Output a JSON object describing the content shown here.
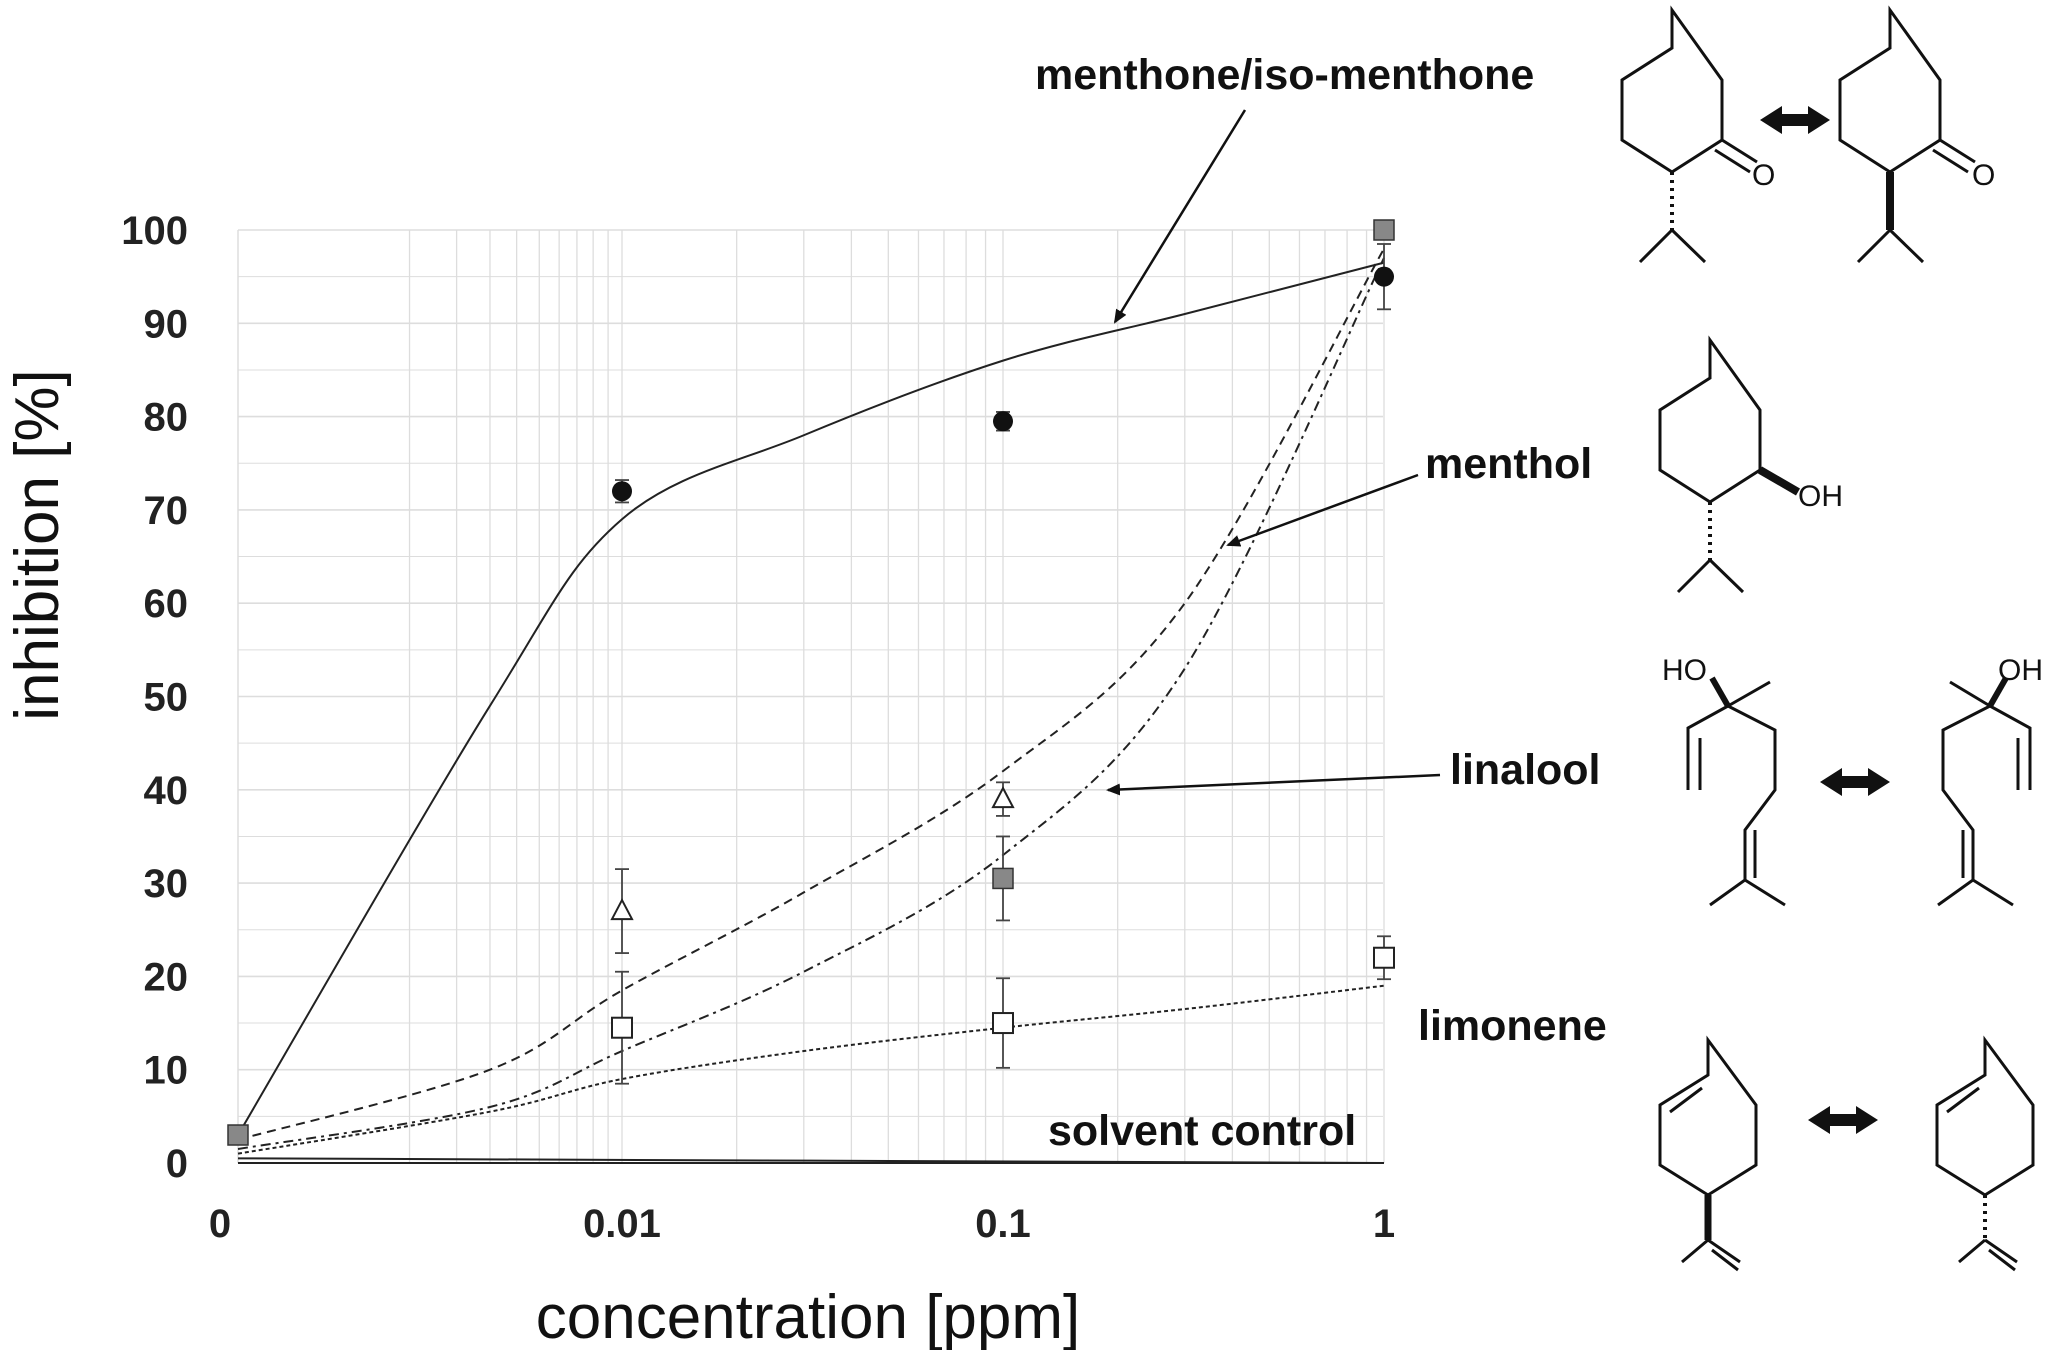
{
  "chart_data": {
    "type": "scatter",
    "xlabel": "concentration [ppm]",
    "ylabel": "inhibition [%]",
    "x_scale": "log",
    "x_ticks": [
      "0",
      "0.01",
      "0.1",
      "1"
    ],
    "y_ticks": [
      "0",
      "10",
      "20",
      "30",
      "40",
      "50",
      "60",
      "70",
      "80",
      "90",
      "100"
    ],
    "ylim": [
      0,
      100
    ],
    "grid": true,
    "series": [
      {
        "marker": "filled-circle",
        "x": [
          0.01,
          0.1,
          1
        ],
        "y": [
          72,
          79.5,
          95
        ],
        "err": [
          1.2,
          1.0,
          3.5
        ]
      },
      {
        "marker": "grey-square",
        "x": [
          0,
          0.1,
          1
        ],
        "y": [
          3,
          30.5,
          100
        ],
        "err": [
          0,
          4.5,
          0
        ]
      },
      {
        "marker": "open-triangle",
        "x": [
          0.01,
          0.1
        ],
        "y": [
          27,
          39
        ],
        "err": [
          4.5,
          1.8
        ]
      },
      {
        "marker": "open-square",
        "x": [
          0.01,
          0.1,
          1
        ],
        "y": [
          14.5,
          15,
          22
        ],
        "err": [
          6.0,
          4.8,
          2.3
        ]
      }
    ],
    "fit_curves": [
      {
        "label": "menthone/iso-menthone",
        "style": "solid",
        "x": [
          0,
          0.003,
          0.01,
          0.03,
          0.1,
          0.3,
          1
        ],
        "y": [
          3,
          49,
          69,
          78,
          86,
          91,
          96.5
        ]
      },
      {
        "label": "menthol",
        "style": "dashed",
        "x": [
          0,
          0.003,
          0.01,
          0.03,
          0.1,
          0.3,
          1
        ],
        "y": [
          2.5,
          10,
          18.5,
          29,
          42,
          60,
          98
        ]
      },
      {
        "label": "linalool",
        "style": "dash-dot",
        "x": [
          0,
          0.003,
          0.01,
          0.03,
          0.1,
          0.3,
          1
        ],
        "y": [
          1.5,
          6,
          12,
          20.5,
          33,
          53,
          97
        ]
      },
      {
        "label": "limonene",
        "style": "dotted",
        "x": [
          0,
          0.003,
          0.01,
          0.03,
          0.1,
          0.3,
          1
        ],
        "y": [
          1,
          5.5,
          9,
          12,
          14.5,
          16.5,
          19
        ]
      },
      {
        "label": "solvent control",
        "style": "solid",
        "x": [
          0,
          1
        ],
        "y": [
          0.5,
          0
        ]
      }
    ],
    "annotations": [
      "menthone/iso-menthone",
      "menthol",
      "linalool",
      "limonene",
      "solvent control"
    ],
    "structure_labels": [
      "O",
      "O",
      "OH",
      "HO",
      "OH"
    ]
  },
  "colors": {
    "grid": "#dddddd",
    "grey_fill": "#888888",
    "ink": "#111111"
  }
}
